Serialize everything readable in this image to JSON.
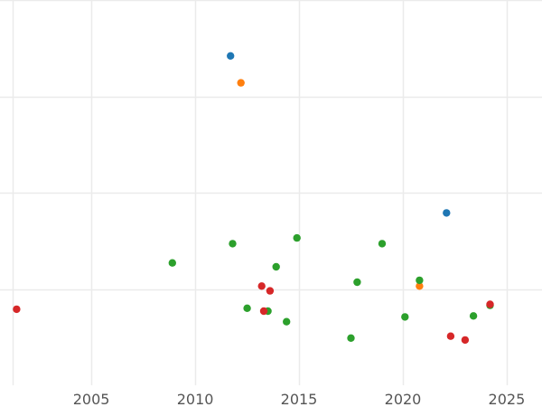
{
  "chart_data": {
    "type": "scatter",
    "title": "",
    "xlabel": "",
    "ylabel": "",
    "grid": true,
    "legend": "none",
    "xlim": [
      2000.6,
      2026.7
    ],
    "ylim": [
      0,
      4
    ],
    "x_ticks": [
      2005,
      2010,
      2015,
      2020,
      2025
    ],
    "x_tick_labels": [
      "2005",
      "2010",
      "2015",
      "2020",
      "2025"
    ],
    "y_ticks": [
      1,
      2,
      3,
      4
    ],
    "colors": {
      "blue": "#1f77b4",
      "orange": "#ff7f0e",
      "green": "#2ca02c",
      "red": "#d62728",
      "grid": "#ebebeb",
      "tick_text": "#555555"
    },
    "series": [
      {
        "color": "#1f77b4",
        "points": [
          {
            "x": 2011.7,
            "y": 3.42
          },
          {
            "x": 2022.1,
            "y": 1.79
          }
        ]
      },
      {
        "color": "#ff7f0e",
        "points": [
          {
            "x": 2012.2,
            "y": 3.14
          },
          {
            "x": 2020.8,
            "y": 1.03
          }
        ]
      },
      {
        "color": "#2ca02c",
        "points": [
          {
            "x": 2008.9,
            "y": 1.27
          },
          {
            "x": 2011.8,
            "y": 1.47
          },
          {
            "x": 2012.5,
            "y": 0.8
          },
          {
            "x": 2013.5,
            "y": 0.77
          },
          {
            "x": 2013.9,
            "y": 1.23
          },
          {
            "x": 2014.4,
            "y": 0.66
          },
          {
            "x": 2014.9,
            "y": 1.53
          },
          {
            "x": 2017.5,
            "y": 0.49
          },
          {
            "x": 2017.8,
            "y": 1.07
          },
          {
            "x": 2019.0,
            "y": 1.47
          },
          {
            "x": 2020.1,
            "y": 0.71
          },
          {
            "x": 2020.8,
            "y": 1.09
          },
          {
            "x": 2023.4,
            "y": 0.72
          },
          {
            "x": 2024.2,
            "y": 0.83
          }
        ]
      },
      {
        "color": "#d62728",
        "points": [
          {
            "x": 2001.4,
            "y": 0.79
          },
          {
            "x": 2013.2,
            "y": 1.03
          },
          {
            "x": 2013.3,
            "y": 0.77
          },
          {
            "x": 2013.6,
            "y": 0.98
          },
          {
            "x": 2022.3,
            "y": 0.51
          },
          {
            "x": 2023.0,
            "y": 0.47
          },
          {
            "x": 2024.2,
            "y": 0.84
          }
        ]
      }
    ]
  }
}
